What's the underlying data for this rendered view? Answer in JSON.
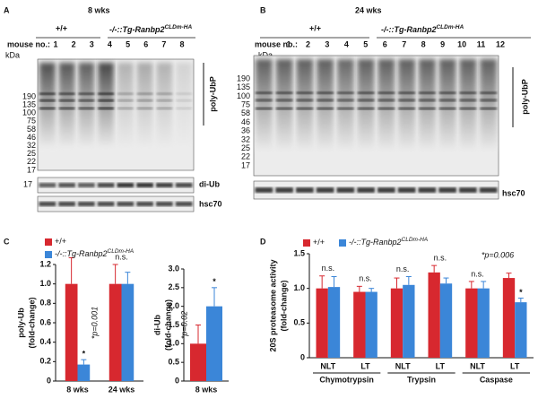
{
  "figure": {
    "A": {
      "label": "A",
      "title": "8 wks",
      "wt": "+/+",
      "ko": "-/-::Tg-Ranbp2",
      "ko_sup": "CLDm-HA",
      "mouse_label": "mouse no.:",
      "mice": [
        "1",
        "2",
        "3",
        "4",
        "5",
        "6",
        "7",
        "8"
      ],
      "kda": "kDa",
      "markers": [
        "190",
        "135",
        "100",
        "75",
        "58",
        "46",
        "32",
        "25",
        "22",
        "17"
      ],
      "poly_label": "poly-UbP",
      "diub_marker": "17",
      "diub_label": "di-Ub",
      "hsc_label": "hsc70"
    },
    "B": {
      "label": "B",
      "title": "24 wks",
      "wt": "+/+",
      "ko": "-/-::Tg-Ranbp2",
      "ko_sup": "CLDm-HA",
      "mouse_label": "mouse no.:",
      "mice": [
        "1",
        "2",
        "3",
        "4",
        "5",
        "6",
        "7",
        "8",
        "9",
        "10",
        "11",
        "12"
      ],
      "kda": "kDa",
      "markers": [
        "190",
        "135",
        "100",
        "75",
        "58",
        "46",
        "36",
        "32",
        "25",
        "22",
        "17"
      ],
      "poly_label": "poly-UbP",
      "hsc_label": "hsc70"
    },
    "C": {
      "label": "C"
    },
    "D": {
      "label": "D"
    }
  },
  "chart_data": [
    {
      "type": "bar",
      "ylabel": [
        "poly-Ub",
        "(fold-change)"
      ],
      "categories": [
        "8 wks",
        "24 wks"
      ],
      "series": [
        {
          "name": "+/+",
          "color": "#d7282f",
          "values": [
            1.0,
            1.0
          ],
          "errors": [
            0.27,
            0.2
          ]
        },
        {
          "name": "-/-::Tg-Ranbp2",
          "name_sup": "CLDm-HA",
          "color": "#3b86d8",
          "values": [
            0.17,
            1.0
          ],
          "errors": [
            0.05,
            0.12
          ],
          "marks": [
            "*",
            null
          ]
        }
      ],
      "pair_labels": [
        null,
        "n.s."
      ],
      "p_labels": [
        "*p=0.001",
        null
      ],
      "ylim": [
        0,
        1.2
      ],
      "yticks": [
        0,
        0.2,
        0.4,
        0.6,
        0.8,
        {
          "value": 1,
          "label": "1.0"
        },
        1.2
      ]
    },
    {
      "type": "bar",
      "ylabel": [
        "di-Ub",
        "(fold-change)"
      ],
      "categories": [
        "8 wks"
      ],
      "series": [
        {
          "color": "#d7282f",
          "values": [
            1.0
          ],
          "errors": [
            0.5
          ]
        },
        {
          "color": "#3b86d8",
          "values": [
            2.0
          ],
          "errors": [
            0.5
          ],
          "marks": [
            "*"
          ]
        }
      ],
      "p_labels": [
        "*p=0.02"
      ],
      "ylim": [
        0,
        3
      ],
      "yticks": [
        0,
        0.5,
        {
          "value": 1,
          "label": "1.0"
        },
        1.5,
        {
          "value": 2,
          "label": "2.0"
        },
        2.5,
        {
          "value": 3,
          "label": "3.0"
        }
      ]
    },
    {
      "type": "bar",
      "ylabel": [
        "20S proteasome activity",
        "(fold-change)"
      ],
      "categories": [
        "NLT",
        "LT",
        "NLT",
        "LT",
        "NLT",
        "LT"
      ],
      "groups": [
        "Chymotrypsin",
        "Trypsin",
        "Caspase"
      ],
      "series": [
        {
          "name": "+/+",
          "color": "#d7282f",
          "values": [
            1.0,
            0.95,
            1.0,
            1.23,
            1.0,
            1.15
          ],
          "errors": [
            0.18,
            0.08,
            0.15,
            0.1,
            0.1,
            0.07
          ]
        },
        {
          "name": "-/-::Tg-Ranbp2",
          "name_sup": "CLDm-HA",
          "color": "#3b86d8",
          "values": [
            1.02,
            0.95,
            1.05,
            1.07,
            1.0,
            0.8
          ],
          "errors": [
            0.15,
            0.05,
            0.12,
            0.08,
            0.1,
            0.06
          ],
          "marks": [
            null,
            null,
            null,
            null,
            null,
            "*"
          ]
        }
      ],
      "pair_labels": [
        "n.s.",
        "n.s.",
        "n.s.",
        "n.s.",
        "n.s.",
        null
      ],
      "note": "*p=0.006",
      "ylim": [
        0,
        1.5
      ],
      "yticks": [
        0,
        0.5,
        {
          "value": 1,
          "label": "1.0"
        },
        1.5
      ]
    }
  ]
}
